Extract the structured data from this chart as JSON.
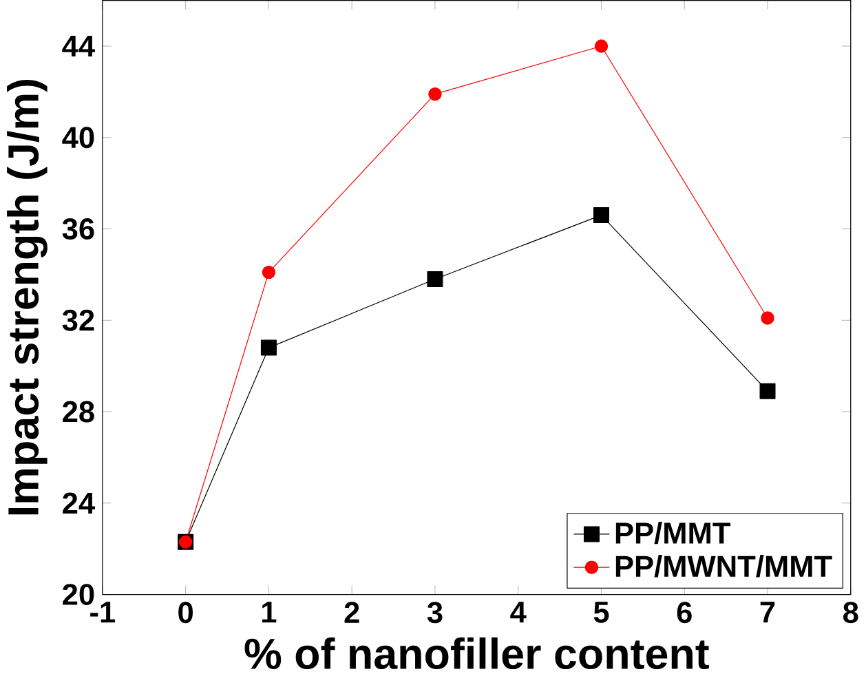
{
  "chart_data": {
    "type": "line",
    "xlabel": "% of nanofiller content",
    "ylabel": "Impact strength (J/m)",
    "x": [
      0,
      1,
      3,
      5,
      7
    ],
    "series": [
      {
        "name": "PP/MMT",
        "color": "#000000",
        "marker": "square",
        "values": [
          22.3,
          30.8,
          33.8,
          36.6,
          28.9
        ]
      },
      {
        "name": "PP/MWNT/MMT",
        "color": "#ff0000",
        "marker": "circle",
        "values": [
          22.3,
          34.1,
          41.9,
          44.0,
          32.1
        ]
      }
    ],
    "xlim": [
      -1,
      8
    ],
    "xticks": [
      -1,
      0,
      1,
      2,
      3,
      4,
      5,
      6,
      7,
      8
    ],
    "ylim": [
      20,
      46
    ],
    "yticks": [
      20,
      24,
      28,
      32,
      36,
      40,
      44
    ],
    "legend": "bottom right",
    "grid": false
  }
}
